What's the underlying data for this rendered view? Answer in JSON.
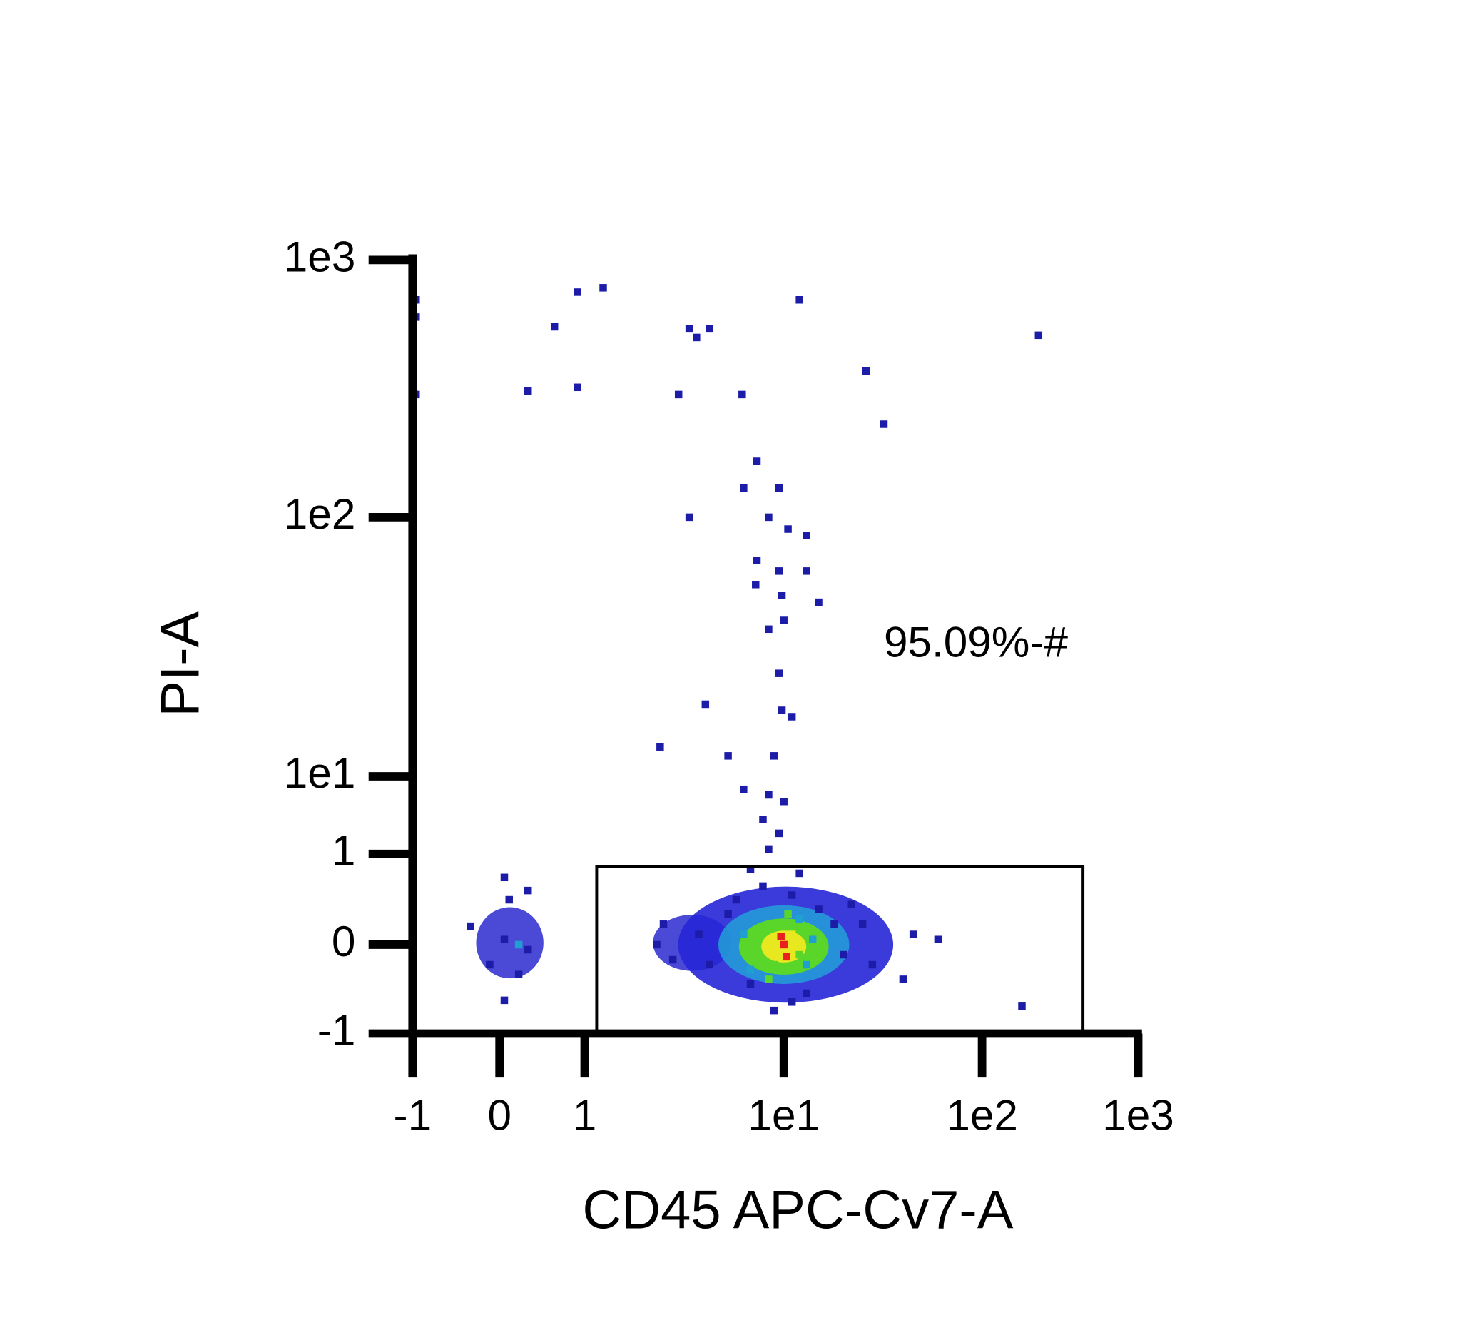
{
  "chart_data": {
    "type": "scatter",
    "xlabel": "CD45 APC-Cv7-A",
    "ylabel": "PI-A",
    "scale": "biexponential",
    "xlim": [
      -1,
      1000
    ],
    "ylim": [
      -1,
      1000
    ],
    "xticks": [
      -1,
      0,
      1,
      {
        "value": 10,
        "label": "1e1"
      },
      {
        "value": 100,
        "label": "1e2"
      },
      {
        "value": 1000,
        "label": "1e3"
      }
    ],
    "yticks": [
      -1,
      0,
      1,
      {
        "value": 10,
        "label": "1e1"
      },
      {
        "value": 100,
        "label": "1e2"
      },
      {
        "value": 1000,
        "label": "1e3"
      }
    ],
    "gate": {
      "x": [
        1.19,
        443
      ],
      "y": [
        -1,
        0.83
      ],
      "label": "95.09%-#"
    },
    "series": [
      {
        "color": "#1c1ca8",
        "x": [
          -0.95,
          -0.95,
          -0.95,
          0.9,
          1.3,
          0.6,
          0.9,
          0.3,
          3.6,
          3.9,
          4.5,
          12,
          230,
          3.2,
          6.4,
          26,
          32,
          7.5,
          6.5,
          9.5,
          3.6,
          8.5,
          10.5,
          13,
          7.5,
          9.5,
          13,
          7.4,
          9.8,
          15,
          8.5,
          10,
          9.5,
          9.8,
          11,
          4.3,
          2.6,
          5.5,
          9,
          6.5,
          8.5,
          10,
          8,
          9.5,
          8.5,
          0.05,
          0.1,
          0.3,
          -0.3,
          0.05,
          0.3,
          -0.1,
          0.2,
          0.05,
          2.7,
          2.5,
          3,
          4,
          4.5,
          5.5,
          6,
          7,
          8,
          11,
          13,
          15,
          18,
          20,
          22,
          25,
          28,
          40,
          45,
          60,
          180,
          9,
          11,
          12,
          7
        ],
        "values": [
          700,
          600,
          300,
          750,
          780,
          550,
          320,
          310,
          540,
          500,
          540,
          700,
          510,
          300,
          300,
          370,
          230,
          165,
          130,
          130,
          100,
          100,
          90,
          85,
          68,
          62,
          62,
          55,
          50,
          47,
          37,
          40,
          25,
          18,
          17,
          19,
          13,
          12,
          12,
          7,
          6,
          5,
          3,
          2,
          1.2,
          0.7,
          0.45,
          0.55,
          0.18,
          0.05,
          -0.05,
          -0.2,
          -0.3,
          -0.58,
          0.2,
          0,
          -0.15,
          0.1,
          -0.2,
          0.3,
          0.45,
          -0.4,
          0.6,
          0.5,
          -0.5,
          0.35,
          0.2,
          -0.1,
          0.4,
          0.2,
          -0.2,
          -0.35,
          0.1,
          0.05,
          -0.65,
          -0.7,
          -0.6,
          0.75,
          0.8
        ]
      },
      {
        "color": "#1fa0d0",
        "x": [
          0.2,
          6.5,
          12,
          13,
          7,
          14
        ],
        "values": [
          0,
          0.1,
          0.25,
          -0.2,
          -0.25,
          0.05
        ]
      },
      {
        "color": "#5ad62a",
        "x": [
          8,
          9,
          11,
          12,
          8.5,
          10.5
        ],
        "values": [
          0.15,
          -0.2,
          0.2,
          -0.1,
          -0.35,
          0.3
        ]
      },
      {
        "color": "#e8e820",
        "x": [
          9.5,
          10.5,
          9,
          11
        ],
        "values": [
          0.05,
          -0.1,
          0,
          0.1
        ]
      },
      {
        "color": "#e82020",
        "x": [
          10,
          10.3,
          9.7
        ],
        "values": [
          0,
          -0.12,
          0.08
        ]
      }
    ]
  }
}
